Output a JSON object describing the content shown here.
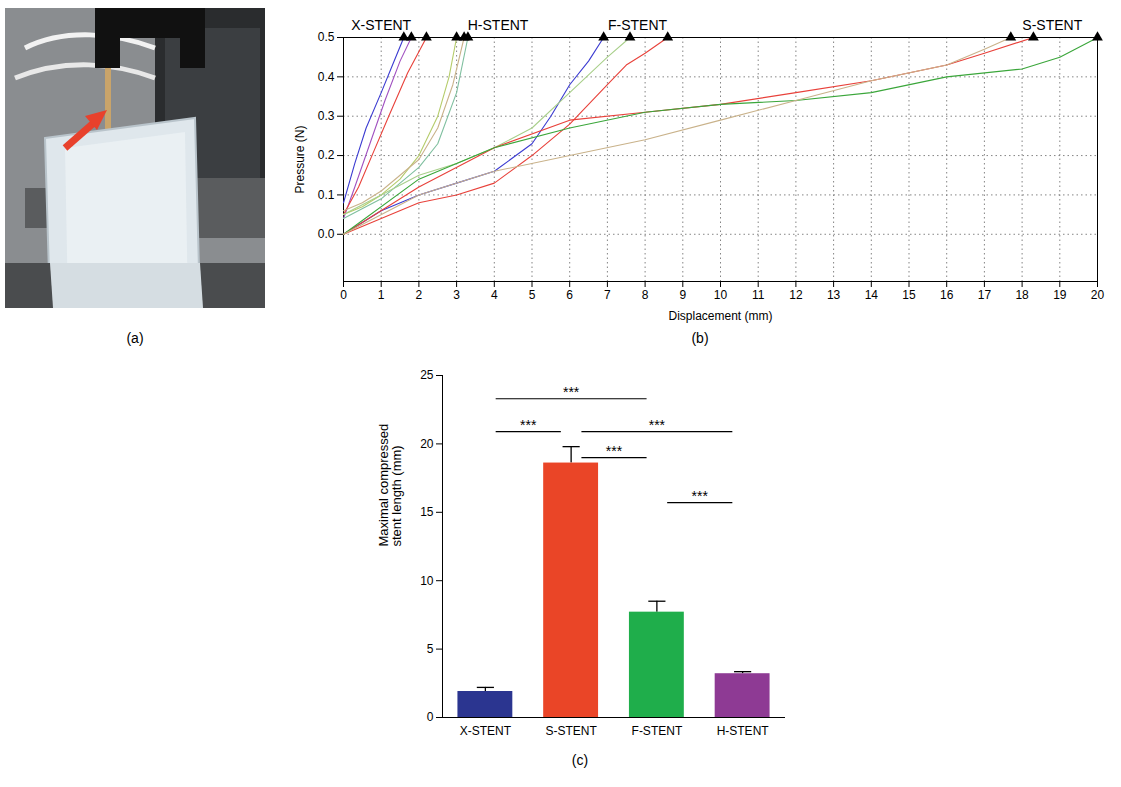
{
  "chart_data": [
    {
      "type": "image",
      "panel": "(a)"
    },
    {
      "type": "line",
      "panel": "(b)",
      "x_label": "Displacement (mm)",
      "y_label": "Pressure (N)",
      "xlim": [
        0,
        20
      ],
      "xticks": [
        0,
        1,
        2,
        3,
        4,
        5,
        6,
        7,
        8,
        9,
        10,
        11,
        12,
        13,
        14,
        15,
        16,
        17,
        18,
        19,
        20
      ],
      "ylim": [
        -0.12,
        0.5
      ],
      "yticks": [
        {
          "value": 0,
          "label": "0.0"
        },
        0.1,
        0.2,
        0.3,
        0.4,
        0.5
      ],
      "grid": true,
      "marker": "triangle",
      "annotations": [
        {
          "text": "X-STENT",
          "x": 1.0
        },
        {
          "text": "H-STENT",
          "x": 4.1
        },
        {
          "text": "F-STENT",
          "x": 7.8
        },
        {
          "text": "S-STENT",
          "x": 18.8
        }
      ],
      "series": [
        {
          "color": "#3b3bd1",
          "x": [
            0,
            0.3,
            0.6,
            1.0,
            1.3,
            1.6
          ],
          "values": [
            0.08,
            0.18,
            0.27,
            0.36,
            0.43,
            0.5
          ]
        },
        {
          "color": "#a050c0",
          "x": [
            0,
            0.3,
            0.7,
            1.1,
            1.5,
            1.8
          ],
          "values": [
            0.04,
            0.12,
            0.23,
            0.34,
            0.44,
            0.5
          ]
        },
        {
          "color": "#e8413a",
          "x": [
            0,
            0.4,
            0.8,
            1.2,
            1.7,
            2.2
          ],
          "values": [
            0.05,
            0.12,
            0.21,
            0.3,
            0.41,
            0.5
          ]
        },
        {
          "color": "#b5cc6a",
          "x": [
            0,
            0.5,
            1,
            1.5,
            2,
            2.5,
            2.8,
            3.0
          ],
          "values": [
            0.05,
            0.07,
            0.1,
            0.14,
            0.2,
            0.3,
            0.4,
            0.5
          ]
        },
        {
          "color": "#c9b28a",
          "x": [
            0,
            0.5,
            1,
            1.5,
            2,
            2.5,
            2.9,
            3.2
          ],
          "values": [
            0.06,
            0.08,
            0.11,
            0.15,
            0.19,
            0.27,
            0.38,
            0.5
          ]
        },
        {
          "color": "#7fbf9f",
          "x": [
            0,
            1,
            2,
            2.5,
            3,
            3.3
          ],
          "values": [
            0.04,
            0.09,
            0.17,
            0.23,
            0.36,
            0.5
          ]
        },
        {
          "color": "#3b3bd1",
          "x": [
            0,
            1,
            2,
            3,
            4,
            5,
            5.5,
            6,
            6.5,
            6.9
          ],
          "values": [
            0,
            0.06,
            0.1,
            0.13,
            0.16,
            0.23,
            0.3,
            0.38,
            0.44,
            0.5
          ]
        },
        {
          "color": "#a8cf8a",
          "x": [
            0,
            1,
            2,
            3,
            4,
            5,
            6,
            7,
            7.6
          ],
          "values": [
            0.05,
            0.1,
            0.15,
            0.18,
            0.22,
            0.27,
            0.36,
            0.45,
            0.5
          ]
        },
        {
          "color": "#e8413a",
          "x": [
            0,
            1,
            2,
            3,
            4,
            5,
            6,
            7,
            7.5,
            8,
            8.6
          ],
          "values": [
            0,
            0.04,
            0.08,
            0.1,
            0.13,
            0.2,
            0.28,
            0.38,
            0.43,
            0.46,
            0.5
          ]
        },
        {
          "color": "#e8413a",
          "x": [
            0,
            2,
            4,
            6,
            8,
            10,
            12,
            14,
            16,
            17,
            18.3
          ],
          "values": [
            0,
            0.12,
            0.22,
            0.29,
            0.31,
            0.33,
            0.36,
            0.39,
            0.43,
            0.46,
            0.5
          ]
        },
        {
          "color": "#3aa63a",
          "x": [
            0,
            2,
            4,
            6,
            8,
            10,
            12,
            14,
            16,
            18,
            19,
            20
          ],
          "values": [
            0,
            0.14,
            0.22,
            0.27,
            0.31,
            0.33,
            0.34,
            0.36,
            0.4,
            0.42,
            0.45,
            0.5
          ]
        },
        {
          "color": "#c9b28a",
          "x": [
            0,
            2,
            4,
            6,
            8,
            10,
            12,
            14,
            16,
            17,
            17.7
          ],
          "values": [
            0,
            0.1,
            0.16,
            0.2,
            0.24,
            0.29,
            0.34,
            0.39,
            0.43,
            0.47,
            0.5
          ]
        }
      ]
    },
    {
      "type": "bar",
      "panel": "(c)",
      "y_label": "Maximal compressed stent length (mm)",
      "categories": [
        "X-STENT",
        "S-STENT",
        "F-STENT",
        "H-STENT"
      ],
      "values": [
        1.9,
        18.6,
        7.7,
        3.2
      ],
      "errors": [
        0.3,
        1.2,
        0.8,
        0.15
      ],
      "colors": [
        "#2b3590",
        "#ea4527",
        "#1fae4b",
        "#8e3a94"
      ],
      "ylim": [
        0,
        25
      ],
      "yticks": [
        0,
        5,
        10,
        15,
        20,
        25
      ],
      "annotations": [
        {
          "text": "***",
          "from": "X-STENT",
          "to": "F-STENT",
          "y": 23.3
        },
        {
          "text": "***",
          "from": "X-STENT",
          "to": "S-STENT",
          "y": 20.9
        },
        {
          "text": "***",
          "from": "S-STENT",
          "to": "H-STENT",
          "y": 20.9
        },
        {
          "text": "***",
          "from": "S-STENT",
          "to": "F-STENT",
          "y": 19.0
        },
        {
          "text": "***",
          "from": "F-STENT",
          "to": "H-STENT",
          "y": 15.7
        }
      ]
    }
  ]
}
